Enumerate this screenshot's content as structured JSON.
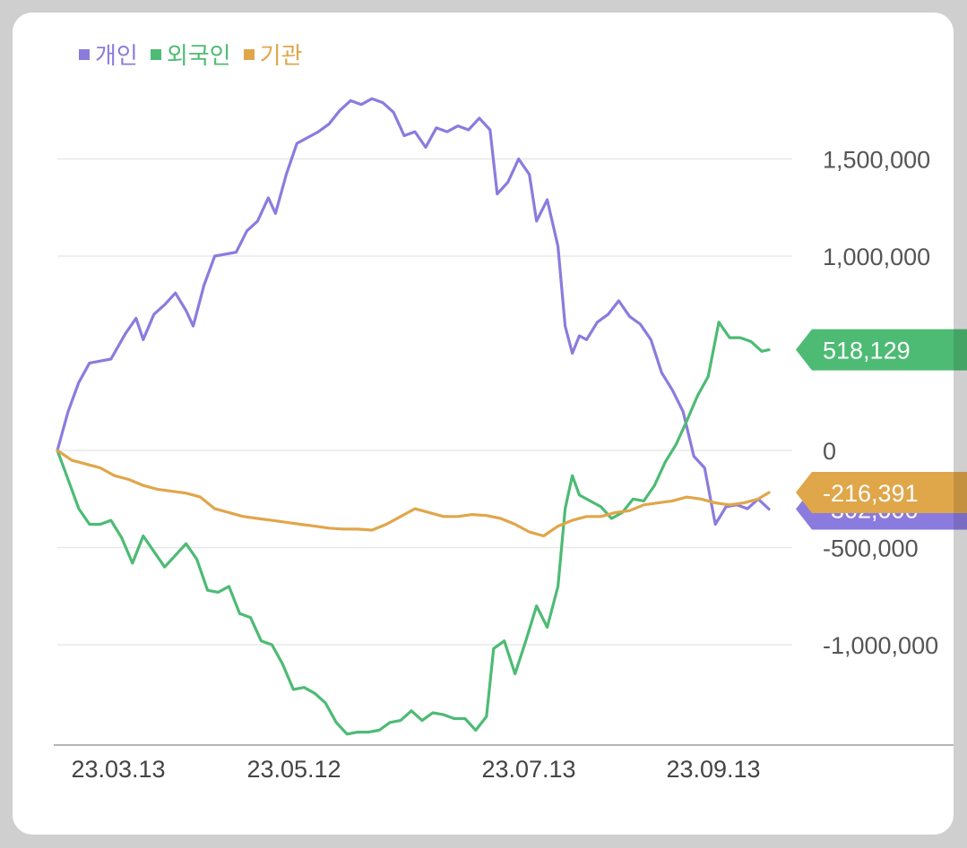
{
  "chart_data": {
    "type": "line",
    "x_ticks": [
      "23.03.13",
      "23.05.12",
      "23.07.13",
      "23.09.13"
    ],
    "y_ticks": [
      {
        "value": 1500000,
        "label": "1,500,000"
      },
      {
        "value": 1000000,
        "label": "1,000,000"
      },
      {
        "value": 0,
        "label": "0"
      },
      {
        "value": -500000,
        "label": "-500,000"
      },
      {
        "value": -1000000,
        "label": "-1,000,000"
      }
    ],
    "ylim": [
      -1500000,
      1850000
    ],
    "grid": true,
    "legend_position": "top-left",
    "series": [
      {
        "name": "개인",
        "color": "#8b7bde",
        "end_label": "-302,000",
        "points": [
          [
            "2023-03-01",
            0
          ],
          [
            "2023-03-04",
            200000
          ],
          [
            "2023-03-07",
            350000
          ],
          [
            "2023-03-10",
            450000
          ],
          [
            "2023-03-13",
            460000
          ],
          [
            "2023-03-16",
            470000
          ],
          [
            "2023-03-20",
            600000
          ],
          [
            "2023-03-23",
            680000
          ],
          [
            "2023-03-25",
            570000
          ],
          [
            "2023-03-28",
            700000
          ],
          [
            "2023-03-31",
            750000
          ],
          [
            "2023-04-03",
            810000
          ],
          [
            "2023-04-06",
            720000
          ],
          [
            "2023-04-08",
            640000
          ],
          [
            "2023-04-11",
            850000
          ],
          [
            "2023-04-14",
            1000000
          ],
          [
            "2023-04-17",
            1010000
          ],
          [
            "2023-04-20",
            1020000
          ],
          [
            "2023-04-23",
            1130000
          ],
          [
            "2023-04-26",
            1180000
          ],
          [
            "2023-04-29",
            1300000
          ],
          [
            "2023-05-01",
            1220000
          ],
          [
            "2023-05-04",
            1420000
          ],
          [
            "2023-05-07",
            1580000
          ],
          [
            "2023-05-10",
            1610000
          ],
          [
            "2023-05-13",
            1640000
          ],
          [
            "2023-05-16",
            1680000
          ],
          [
            "2023-05-19",
            1750000
          ],
          [
            "2023-05-22",
            1800000
          ],
          [
            "2023-05-25",
            1780000
          ],
          [
            "2023-05-28",
            1810000
          ],
          [
            "2023-05-31",
            1790000
          ],
          [
            "2023-06-03",
            1740000
          ],
          [
            "2023-06-06",
            1620000
          ],
          [
            "2023-06-09",
            1640000
          ],
          [
            "2023-06-12",
            1560000
          ],
          [
            "2023-06-15",
            1660000
          ],
          [
            "2023-06-18",
            1640000
          ],
          [
            "2023-06-21",
            1670000
          ],
          [
            "2023-06-24",
            1650000
          ],
          [
            "2023-06-27",
            1710000
          ],
          [
            "2023-06-30",
            1650000
          ],
          [
            "2023-07-02",
            1320000
          ],
          [
            "2023-07-05",
            1380000
          ],
          [
            "2023-07-08",
            1500000
          ],
          [
            "2023-07-11",
            1420000
          ],
          [
            "2023-07-13",
            1180000
          ],
          [
            "2023-07-16",
            1290000
          ],
          [
            "2023-07-19",
            1050000
          ],
          [
            "2023-07-21",
            640000
          ],
          [
            "2023-07-23",
            500000
          ],
          [
            "2023-07-25",
            590000
          ],
          [
            "2023-07-27",
            570000
          ],
          [
            "2023-07-30",
            660000
          ],
          [
            "2023-08-02",
            700000
          ],
          [
            "2023-08-05",
            770000
          ],
          [
            "2023-08-08",
            690000
          ],
          [
            "2023-08-11",
            650000
          ],
          [
            "2023-08-14",
            570000
          ],
          [
            "2023-08-17",
            400000
          ],
          [
            "2023-08-20",
            310000
          ],
          [
            "2023-08-23",
            200000
          ],
          [
            "2023-08-26",
            -30000
          ],
          [
            "2023-08-29",
            -90000
          ],
          [
            "2023-09-01",
            -380000
          ],
          [
            "2023-09-04",
            -290000
          ],
          [
            "2023-09-07",
            -280000
          ],
          [
            "2023-09-10",
            -300000
          ],
          [
            "2023-09-13",
            -250000
          ],
          [
            "2023-09-16",
            -302000
          ]
        ]
      },
      {
        "name": "외국인",
        "color": "#4dbb74",
        "end_label": "518,129",
        "points": [
          [
            "2023-03-01",
            0
          ],
          [
            "2023-03-04",
            -150000
          ],
          [
            "2023-03-07",
            -300000
          ],
          [
            "2023-03-10",
            -380000
          ],
          [
            "2023-03-13",
            -380000
          ],
          [
            "2023-03-16",
            -360000
          ],
          [
            "2023-03-19",
            -450000
          ],
          [
            "2023-03-22",
            -580000
          ],
          [
            "2023-03-25",
            -440000
          ],
          [
            "2023-03-28",
            -520000
          ],
          [
            "2023-03-31",
            -600000
          ],
          [
            "2023-04-03",
            -540000
          ],
          [
            "2023-04-06",
            -480000
          ],
          [
            "2023-04-09",
            -560000
          ],
          [
            "2023-04-12",
            -720000
          ],
          [
            "2023-04-15",
            -730000
          ],
          [
            "2023-04-18",
            -700000
          ],
          [
            "2023-04-21",
            -840000
          ],
          [
            "2023-04-24",
            -860000
          ],
          [
            "2023-04-27",
            -980000
          ],
          [
            "2023-04-30",
            -1000000
          ],
          [
            "2023-05-03",
            -1100000
          ],
          [
            "2023-05-06",
            -1230000
          ],
          [
            "2023-05-09",
            -1220000
          ],
          [
            "2023-05-12",
            -1250000
          ],
          [
            "2023-05-15",
            -1300000
          ],
          [
            "2023-05-18",
            -1400000
          ],
          [
            "2023-05-21",
            -1460000
          ],
          [
            "2023-05-24",
            -1450000
          ],
          [
            "2023-05-27",
            -1450000
          ],
          [
            "2023-05-30",
            -1440000
          ],
          [
            "2023-06-02",
            -1400000
          ],
          [
            "2023-06-05",
            -1390000
          ],
          [
            "2023-06-08",
            -1340000
          ],
          [
            "2023-06-11",
            -1390000
          ],
          [
            "2023-06-14",
            -1350000
          ],
          [
            "2023-06-17",
            -1360000
          ],
          [
            "2023-06-20",
            -1380000
          ],
          [
            "2023-06-23",
            -1380000
          ],
          [
            "2023-06-26",
            -1440000
          ],
          [
            "2023-06-29",
            -1370000
          ],
          [
            "2023-07-01",
            -1020000
          ],
          [
            "2023-07-04",
            -980000
          ],
          [
            "2023-07-07",
            -1150000
          ],
          [
            "2023-07-10",
            -980000
          ],
          [
            "2023-07-13",
            -800000
          ],
          [
            "2023-07-16",
            -910000
          ],
          [
            "2023-07-19",
            -700000
          ],
          [
            "2023-07-21",
            -300000
          ],
          [
            "2023-07-23",
            -130000
          ],
          [
            "2023-07-25",
            -230000
          ],
          [
            "2023-07-28",
            -260000
          ],
          [
            "2023-07-31",
            -290000
          ],
          [
            "2023-08-03",
            -350000
          ],
          [
            "2023-08-06",
            -320000
          ],
          [
            "2023-08-09",
            -250000
          ],
          [
            "2023-08-12",
            -260000
          ],
          [
            "2023-08-15",
            -180000
          ],
          [
            "2023-08-18",
            -60000
          ],
          [
            "2023-08-21",
            30000
          ],
          [
            "2023-08-24",
            150000
          ],
          [
            "2023-08-27",
            280000
          ],
          [
            "2023-08-30",
            380000
          ],
          [
            "2023-09-02",
            660000
          ],
          [
            "2023-09-05",
            580000
          ],
          [
            "2023-09-08",
            580000
          ],
          [
            "2023-09-11",
            560000
          ],
          [
            "2023-09-14",
            510000
          ],
          [
            "2023-09-16",
            518129
          ]
        ]
      },
      {
        "name": "기관",
        "color": "#e0a64a",
        "end_label": "-216,391",
        "points": [
          [
            "2023-03-01",
            0
          ],
          [
            "2023-03-05",
            -50000
          ],
          [
            "2023-03-09",
            -70000
          ],
          [
            "2023-03-13",
            -90000
          ],
          [
            "2023-03-17",
            -130000
          ],
          [
            "2023-03-21",
            -150000
          ],
          [
            "2023-03-25",
            -180000
          ],
          [
            "2023-03-29",
            -200000
          ],
          [
            "2023-04-02",
            -210000
          ],
          [
            "2023-04-06",
            -220000
          ],
          [
            "2023-04-10",
            -240000
          ],
          [
            "2023-04-14",
            -300000
          ],
          [
            "2023-04-18",
            -320000
          ],
          [
            "2023-04-22",
            -340000
          ],
          [
            "2023-04-26",
            -350000
          ],
          [
            "2023-04-30",
            -360000
          ],
          [
            "2023-05-04",
            -370000
          ],
          [
            "2023-05-08",
            -380000
          ],
          [
            "2023-05-12",
            -390000
          ],
          [
            "2023-05-16",
            -400000
          ],
          [
            "2023-05-20",
            -405000
          ],
          [
            "2023-05-24",
            -405000
          ],
          [
            "2023-05-28",
            -410000
          ],
          [
            "2023-06-01",
            -380000
          ],
          [
            "2023-06-05",
            -340000
          ],
          [
            "2023-06-09",
            -300000
          ],
          [
            "2023-06-13",
            -320000
          ],
          [
            "2023-06-17",
            -340000
          ],
          [
            "2023-06-21",
            -340000
          ],
          [
            "2023-06-25",
            -330000
          ],
          [
            "2023-06-29",
            -335000
          ],
          [
            "2023-07-03",
            -350000
          ],
          [
            "2023-07-07",
            -380000
          ],
          [
            "2023-07-11",
            -420000
          ],
          [
            "2023-07-15",
            -440000
          ],
          [
            "2023-07-19",
            -390000
          ],
          [
            "2023-07-23",
            -360000
          ],
          [
            "2023-07-27",
            -340000
          ],
          [
            "2023-07-31",
            -340000
          ],
          [
            "2023-08-04",
            -320000
          ],
          [
            "2023-08-08",
            -310000
          ],
          [
            "2023-08-12",
            -280000
          ],
          [
            "2023-08-16",
            -270000
          ],
          [
            "2023-08-20",
            -260000
          ],
          [
            "2023-08-24",
            -240000
          ],
          [
            "2023-08-28",
            -250000
          ],
          [
            "2023-09-01",
            -270000
          ],
          [
            "2023-09-05",
            -280000
          ],
          [
            "2023-09-09",
            -270000
          ],
          [
            "2023-09-13",
            -250000
          ],
          [
            "2023-09-16",
            -216391
          ]
        ]
      }
    ]
  }
}
